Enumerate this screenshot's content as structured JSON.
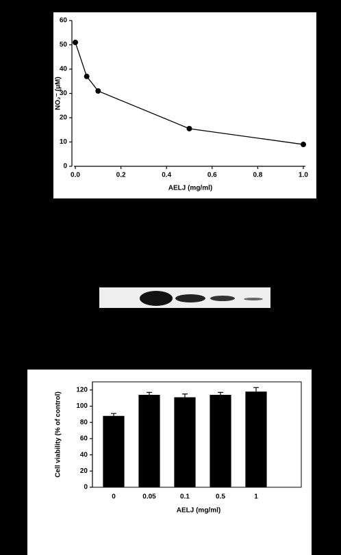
{
  "chart_data": [
    {
      "type": "line",
      "x_label": "AELJ (mg/ml)",
      "y_label": "NO₂⁻ (μM)",
      "x": [
        0,
        0.05,
        0.1,
        0.5,
        1.0
      ],
      "values": [
        51,
        37,
        31,
        15.5,
        9
      ],
      "color": "#000000",
      "xlim": [
        0,
        1
      ],
      "xticks": [
        {
          "value": 0,
          "label": "0.0"
        },
        {
          "value": 0.2,
          "label": "0.2"
        },
        {
          "value": 0.4,
          "label": "0.4"
        },
        {
          "value": 0.6,
          "label": "0.6"
        },
        {
          "value": 0.8,
          "label": "0.8"
        },
        {
          "value": 1.0,
          "label": "1.0"
        }
      ],
      "ylim": [
        0,
        60
      ],
      "yticks": [
        0,
        10,
        20,
        30,
        40,
        50,
        60
      ]
    },
    {
      "type": "bar",
      "x_label": "AELJ (mg/ml)",
      "y_label": "Cell viability (% of control)",
      "categories": [
        "0",
        "0.05",
        "0.1",
        "0.5",
        "1"
      ],
      "values": [
        88,
        114,
        111,
        114,
        118
      ],
      "errors": [
        3,
        3,
        4,
        3,
        5
      ],
      "color": "#000000",
      "ylim": [
        0,
        130
      ],
      "yticks": [
        0,
        20,
        40,
        60,
        80,
        100,
        120
      ]
    }
  ]
}
